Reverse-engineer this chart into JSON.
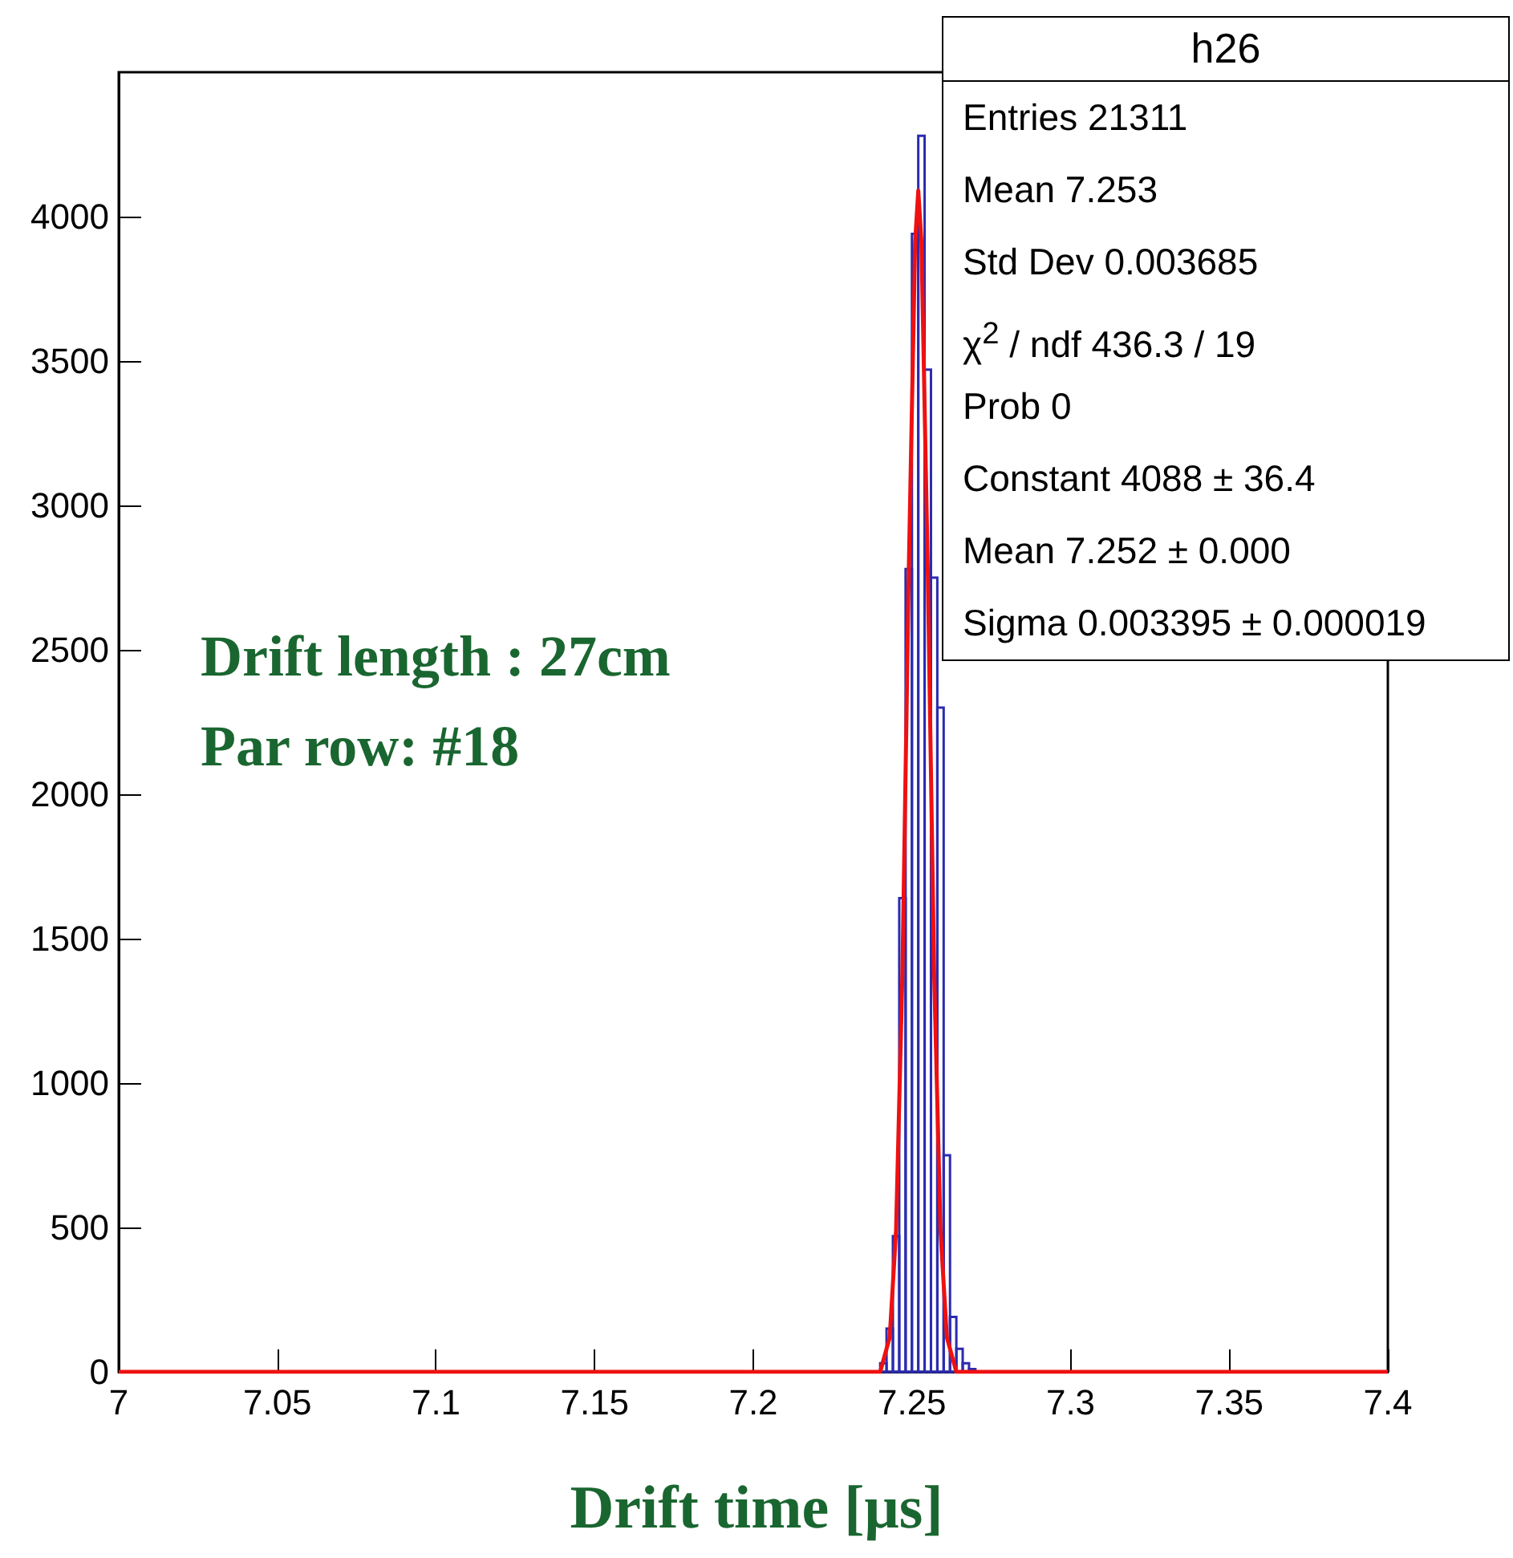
{
  "chart_data": {
    "type": "histogram",
    "title": "h26",
    "xlabel": "Drift time [μs]",
    "annotations": [
      "Drift length : 27cm",
      "Par row: #18",
      "Entries 21311",
      "Mean 7.253",
      "Std Dev 0.003685",
      "χ$^{2}$ / ndf 436.3 / 19",
      "Prob 0",
      "Constant 4088 ± 36.4",
      "Mean 7.252 ± 0.000",
      "Sigma 0.003395 ± 0.000019"
    ],
    "xlim": [
      7,
      7.4
    ],
    "xticks": [
      7,
      7.05,
      7.1,
      7.15,
      7.2,
      7.25,
      7.3,
      7.35,
      7.4
    ],
    "ylim": [
      0,
      4500
    ],
    "yticks": [
      0,
      500,
      1000,
      1500,
      2000,
      2500,
      3000,
      3500,
      4000
    ],
    "grid": false,
    "series": [
      {
        "type": "histogram",
        "color": "#2b2bb0",
        "bins": [
          7.24,
          7.242,
          7.244,
          7.246,
          7.248,
          7.25,
          7.252,
          7.254,
          7.256,
          7.258,
          7.26,
          7.262,
          7.264,
          7.266,
          7.268,
          7.27
        ],
        "values": [
          30,
          150,
          470,
          1640,
          2780,
          3940,
          4280,
          3470,
          2750,
          2300,
          750,
          190,
          80,
          30,
          10
        ]
      },
      {
        "type": "line",
        "color": "#ee1111",
        "x": [
          7.0,
          7.24,
          7.243,
          7.245,
          7.247,
          7.249,
          7.251,
          7.252,
          7.253,
          7.255,
          7.257,
          7.259,
          7.261,
          7.264,
          7.4
        ],
        "values": [
          0,
          0,
          120,
          490,
          1380,
          2770,
          3910,
          4090,
          3910,
          2770,
          1380,
          490,
          120,
          0,
          0
        ]
      }
    ]
  }
}
